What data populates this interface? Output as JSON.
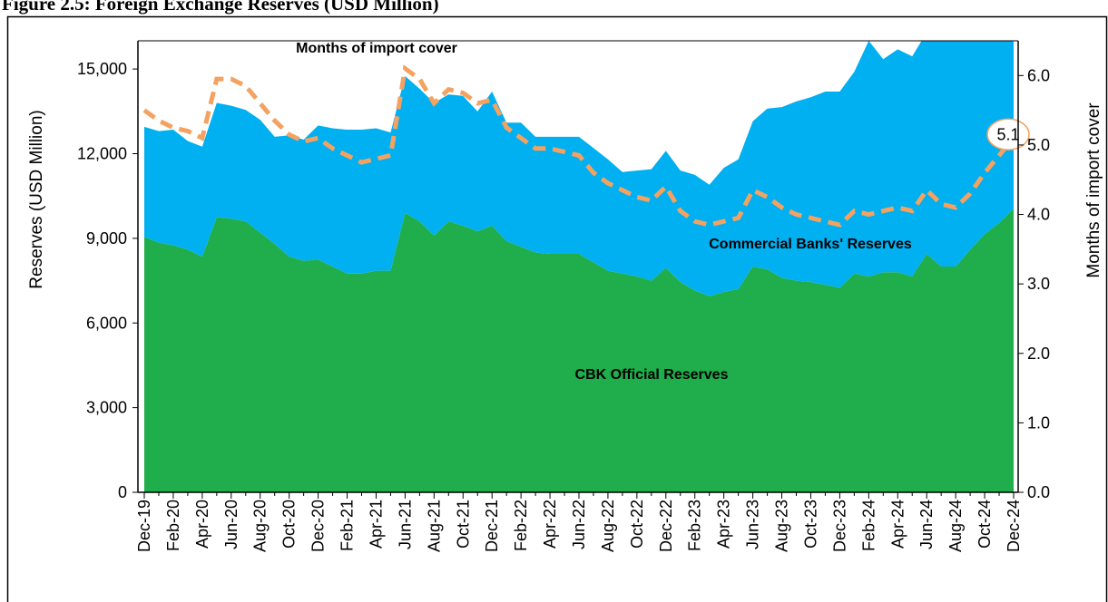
{
  "chart_data": {
    "type": "stacked-area-line",
    "title": "Figure 2.5: Foreign Exchange Reserves (USD Million)",
    "ylabel": "Reserves (USD Million)",
    "y2label": "Months of import cover",
    "categories": [
      "Dec-19",
      null,
      "Feb-20",
      null,
      "Apr-20",
      null,
      "Jun-20",
      null,
      "Aug-20",
      null,
      "Oct-20",
      null,
      "Dec-20",
      null,
      "Feb-21",
      null,
      "Apr-21",
      null,
      "Jun-21",
      null,
      "Aug-21",
      null,
      "Oct-21",
      null,
      "Dec-21",
      null,
      "Feb-22",
      null,
      "Apr-22",
      null,
      "Jun-22",
      null,
      "Aug-22",
      null,
      "Oct-22",
      null,
      "Dec-22",
      null,
      "Feb-23",
      null,
      "Apr-23",
      null,
      "Jun-23",
      null,
      "Aug-23",
      null,
      "Oct-23",
      null,
      "Dec-23",
      null,
      "Feb-24",
      null,
      "Apr-24",
      null,
      "Jun-24",
      null,
      "Aug-24",
      null,
      "Oct-24",
      null,
      "Dec-24"
    ],
    "series": [
      {
        "name": "CBK Official Reserves",
        "color": "#1fae4b",
        "kind": "area",
        "values": [
          9050,
          8850,
          8750,
          8600,
          8350,
          9750,
          9700,
          9600,
          9200,
          8800,
          8350,
          8200,
          8250,
          8000,
          7750,
          7750,
          7850,
          7850,
          9900,
          9600,
          9100,
          9600,
          9450,
          9250,
          9450,
          8900,
          8700,
          8500,
          8450,
          8450,
          8450,
          8150,
          7850,
          7750,
          7650,
          7500,
          7950,
          7450,
          7150,
          6950,
          7100,
          7200,
          8000,
          7900,
          7600,
          7500,
          7450,
          7350,
          7250,
          7750,
          7650,
          7800,
          7800,
          7650,
          8450,
          8000,
          8000,
          8600,
          9150,
          9550,
          10050
        ]
      },
      {
        "name": "Commercial Banks' Reserves",
        "color": "#00b0f0",
        "kind": "area",
        "values": [
          3900,
          3950,
          4100,
          3850,
          3900,
          4050,
          4000,
          3950,
          4000,
          3800,
          4300,
          4300,
          4750,
          4900,
          5100,
          5100,
          5050,
          4900,
          4850,
          4700,
          4700,
          4500,
          4600,
          4250,
          4750,
          4200,
          4400,
          4100,
          4150,
          4150,
          4150,
          4050,
          3950,
          3600,
          3750,
          3950,
          4150,
          3950,
          4100,
          3950,
          4400,
          4600,
          5150,
          5700,
          6050,
          6350,
          6550,
          6850,
          6950,
          7150,
          8350,
          7550,
          7900,
          7800,
          7850,
          8500,
          8500,
          7900,
          7450,
          7050,
          6650
        ]
      },
      {
        "name": "Months of import cover",
        "color": "#f4a261",
        "kind": "line",
        "axis": "y2",
        "values": [
          5.5,
          5.35,
          5.25,
          5.2,
          5.1,
          5.95,
          5.95,
          5.85,
          5.6,
          5.35,
          5.15,
          5.05,
          5.1,
          4.95,
          4.85,
          4.75,
          4.8,
          4.85,
          6.1,
          5.95,
          5.6,
          5.8,
          5.75,
          5.6,
          5.65,
          5.25,
          5.1,
          4.95,
          4.95,
          4.9,
          4.85,
          4.6,
          4.45,
          4.35,
          4.25,
          4.2,
          4.4,
          4.05,
          3.9,
          3.85,
          3.9,
          3.95,
          4.35,
          4.25,
          4.1,
          4.0,
          3.95,
          3.9,
          3.85,
          4.05,
          4.0,
          4.05,
          4.1,
          4.05,
          4.35,
          4.15,
          4.1,
          4.3,
          4.6,
          4.85,
          5.1
        ]
      }
    ],
    "ylim": [
      0,
      16000
    ],
    "yticks": [
      0,
      {
        "value": 3000,
        "label": "3,000"
      },
      {
        "value": 6000,
        "label": "6,000"
      },
      {
        "value": 9000,
        "label": "9,000"
      },
      {
        "value": 12000,
        "label": "12,000"
      },
      {
        "value": 15000,
        "label": "15,000"
      }
    ],
    "y2lim": [
      0,
      6.5
    ],
    "y2ticks": [
      {
        "value": 0,
        "label": "0.0"
      },
      {
        "value": 1,
        "label": "1.0"
      },
      {
        "value": 2,
        "label": "2.0"
      },
      {
        "value": 3,
        "label": "3.0"
      },
      {
        "value": 4,
        "label": "4.0"
      },
      {
        "value": 5,
        "label": "5.0"
      },
      {
        "value": 6,
        "label": "6.0"
      }
    ],
    "grid": false
  }
}
